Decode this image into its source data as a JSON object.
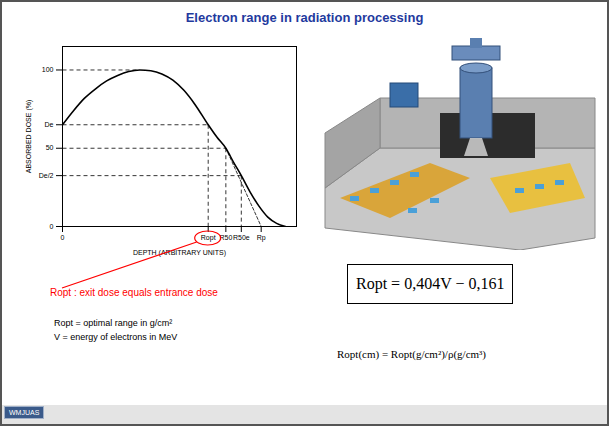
{
  "title": "Electron range in radiation processing",
  "chart_data": {
    "type": "line",
    "x_label": "DEPTH (ARBITRARY UNITS)",
    "y_label": "ABSORBED DOSE (%)",
    "x": [
      0,
      0.5,
      1,
      1.5,
      2,
      2.5,
      3,
      3.5,
      4,
      4.5,
      5,
      5.5,
      6,
      6.6,
      7,
      7.4,
      7.75,
      8.1,
      8.5,
      8.9,
      9.3,
      9.7,
      10.1
    ],
    "values": [
      65,
      74,
      82,
      88,
      93,
      96.5,
      99,
      100,
      99.5,
      97.5,
      93.5,
      87,
      78,
      65,
      57,
      50,
      41,
      32.5,
      22,
      13,
      6,
      2,
      0
    ],
    "color": "#000000",
    "line_style": "solid",
    "xlim": [
      0,
      10.6
    ],
    "ylim": [
      0,
      115
    ],
    "xticks": [
      0,
      {
        "value": 6.6,
        "label": "Ropt"
      },
      {
        "value": 7.4,
        "label": "R50"
      },
      {
        "value": 8.1,
        "label": "R50e"
      },
      {
        "value": 9,
        "label": "Rp"
      }
    ],
    "yticks": [
      0,
      {
        "value": 32.5,
        "label": "De/2"
      },
      50,
      {
        "value": 65,
        "label": "De"
      },
      100
    ],
    "guides": {
      "x": [
        3.5,
        6.6,
        7.4,
        8.1
      ],
      "values": [
        100,
        65,
        50,
        32.5
      ]
    },
    "extrapolation": {
      "x": [
        7.4,
        9
      ],
      "values": [
        50,
        0
      ]
    }
  },
  "annotation": {
    "text": "Ropt : exit dose equals entrance dose",
    "color": "#ff0000"
  },
  "definitions": [
    "Ropt = optimal range in g/cm²",
    "V = energy of electrons in MeV"
  ],
  "formula": "Ropt = 0,404V − 0,161",
  "conversion": "Ropt(cm) = Ropt(g/cm²)/ρ(g/cm³)",
  "logo": "WMJUAS"
}
